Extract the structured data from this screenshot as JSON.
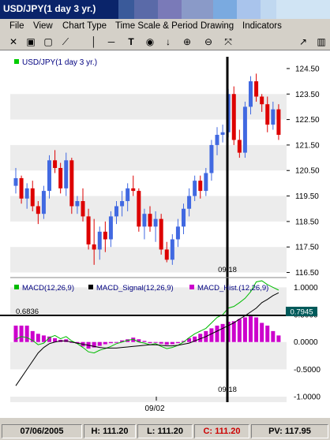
{
  "window": {
    "title": "USD/JPY(1 day  3 yr.)"
  },
  "menu": [
    "File",
    "View",
    "Chart Type",
    "Time Scale & Period",
    "Drawing",
    "Indicators"
  ],
  "toolbar_icons": [
    "crosshair-icon",
    "zoom-select-icon",
    "window-icon",
    "draw-line-icon",
    "vertical-line-icon",
    "horizontal-line-icon",
    "text-tool-icon",
    "target-icon",
    "arrow-down-icon",
    "zoom-in-icon",
    "zoom-out-icon",
    "fit-icon",
    "trend-icon",
    "chart-icon"
  ],
  "price_panel": {
    "legend": "USD/JPY(1 day  3 yr.)",
    "legend_color": "#00cc00",
    "y_ticks": [
      "124.50",
      "123.50",
      "122.50",
      "121.50",
      "120.50",
      "119.50",
      "118.50",
      "117.50",
      "116.50"
    ],
    "crosshair_label": "09/18",
    "up_color": "#4169e1",
    "down_color": "#dd0000"
  },
  "macd_panel": {
    "legend_items": [
      {
        "label": "MACD(12,26,9)",
        "color": "#00bb00"
      },
      {
        "label": "MACD_Signal(12,26,9)",
        "color": "#000000"
      },
      {
        "label": "MACD_Hist.(12,26,9)",
        "color": "#cc00cc"
      }
    ],
    "y_ticks": [
      "1.0000",
      "0.5000",
      "0.0000",
      "-0.5000",
      "-1.0000"
    ],
    "hline_value": "0.6836",
    "current_value": "0.7945",
    "crosshair_label": "09/18",
    "x_label": "09/02"
  },
  "chart_data": {
    "type": "candlestick",
    "candles": [
      [
        119.9,
        120.6,
        119.6,
        120.2
      ],
      [
        120.2,
        120.3,
        119.2,
        119.4
      ],
      [
        119.4,
        120.0,
        119.0,
        119.8
      ],
      [
        119.8,
        120.1,
        118.9,
        119.1
      ],
      [
        119.1,
        119.3,
        118.4,
        118.8
      ],
      [
        118.8,
        119.9,
        118.6,
        119.7
      ],
      [
        119.7,
        121.1,
        119.4,
        120.9
      ],
      [
        120.9,
        121.3,
        120.4,
        120.6
      ],
      [
        120.6,
        120.8,
        119.6,
        119.8
      ],
      [
        119.8,
        121.2,
        119.5,
        120.9
      ],
      [
        120.9,
        121.0,
        118.8,
        119.1
      ],
      [
        119.1,
        119.5,
        118.8,
        119.3
      ],
      [
        119.3,
        119.8,
        118.5,
        118.7
      ],
      [
        118.7,
        119.0,
        117.4,
        117.6
      ],
      [
        117.6,
        118.6,
        116.8,
        117.4
      ],
      [
        117.4,
        118.3,
        117.0,
        118.1
      ],
      [
        118.1,
        118.5,
        117.3,
        117.8
      ],
      [
        117.8,
        118.9,
        117.5,
        118.7
      ],
      [
        118.7,
        119.3,
        118.4,
        119.1
      ],
      [
        119.1,
        119.7,
        118.7,
        119.3
      ],
      [
        119.3,
        120.0,
        118.9,
        119.8
      ],
      [
        119.8,
        120.3,
        119.5,
        119.7
      ],
      [
        119.7,
        119.8,
        118.1,
        118.3
      ],
      [
        118.3,
        119.0,
        117.8,
        118.8
      ],
      [
        118.8,
        119.1,
        118.1,
        118.3
      ],
      [
        118.3,
        118.9,
        117.7,
        118.6
      ],
      [
        118.6,
        118.8,
        117.2,
        117.4
      ],
      [
        117.4,
        117.7,
        116.9,
        117.0
      ],
      [
        117.0,
        118.0,
        116.8,
        117.8
      ],
      [
        117.8,
        118.6,
        117.5,
        118.3
      ],
      [
        118.3,
        119.2,
        118.0,
        119.0
      ],
      [
        119.0,
        119.8,
        118.7,
        119.5
      ],
      [
        119.5,
        120.3,
        119.3,
        120.1
      ],
      [
        120.1,
        120.3,
        119.4,
        119.7
      ],
      [
        119.7,
        120.6,
        119.5,
        120.4
      ],
      [
        120.4,
        121.7,
        120.1,
        121.5
      ],
      [
        121.5,
        122.2,
        121.1,
        121.9
      ],
      [
        121.9,
        122.3,
        121.6,
        122.0
      ],
      [
        122.0,
        123.7,
        121.8,
        123.5
      ],
      [
        123.5,
        123.8,
        121.5,
        121.7
      ],
      [
        121.7,
        122.1,
        121.0,
        121.2
      ],
      [
        121.2,
        123.2,
        121.0,
        123.0
      ],
      [
        123.0,
        124.2,
        122.7,
        124.0
      ],
      [
        124.0,
        124.3,
        123.2,
        123.4
      ],
      [
        123.4,
        123.5,
        122.8,
        123.1
      ],
      [
        123.1,
        123.4,
        122.0,
        122.3
      ],
      [
        122.3,
        123.2,
        122.1,
        122.9
      ],
      [
        122.9,
        123.1,
        121.7,
        121.9
      ]
    ],
    "macd": [
      0.05,
      0.1,
      0.08,
      0.03,
      -0.05,
      -0.02,
      0.08,
      0.12,
      0.06,
      0.1,
      0.02,
      -0.03,
      -0.1,
      -0.18,
      -0.2,
      -0.15,
      -0.12,
      -0.08,
      -0.03,
      0.0,
      0.03,
      0.05,
      0.0,
      -0.02,
      -0.05,
      -0.03,
      -0.08,
      -0.12,
      -0.1,
      -0.06,
      0.0,
      0.08,
      0.15,
      0.2,
      0.25,
      0.35,
      0.45,
      0.5,
      0.62,
      0.65,
      0.72,
      0.8,
      0.92,
      1.1,
      1.12,
      1.05,
      1.0,
      0.95
    ],
    "signal": [
      -0.8,
      -0.65,
      -0.5,
      -0.35,
      -0.2,
      -0.1,
      -0.03,
      0.0,
      0.02,
      0.02,
      0.0,
      -0.02,
      -0.04,
      -0.06,
      -0.08,
      -0.1,
      -0.11,
      -0.11,
      -0.11,
      -0.1,
      -0.09,
      -0.08,
      -0.07,
      -0.06,
      -0.05,
      -0.05,
      -0.06,
      -0.07,
      -0.07,
      -0.06,
      -0.04,
      -0.02,
      0.02,
      0.06,
      0.1,
      0.15,
      0.2,
      0.25,
      0.3,
      0.35,
      0.42,
      0.48,
      0.55,
      0.62,
      0.72,
      0.78,
      0.85,
      0.9
    ],
    "hist": [
      0.3,
      0.3,
      0.3,
      0.2,
      0.15,
      0.12,
      0.1,
      0.07,
      0.04,
      0.05,
      0.0,
      -0.03,
      -0.08,
      -0.12,
      -0.1,
      -0.07,
      -0.04,
      -0.02,
      0.0,
      0.03,
      0.05,
      0.08,
      0.05,
      0.02,
      -0.02,
      0.0,
      -0.03,
      -0.05,
      -0.04,
      -0.02,
      0.02,
      0.07,
      0.1,
      0.15,
      0.2,
      0.25,
      0.3,
      0.33,
      0.37,
      0.38,
      0.42,
      0.45,
      0.47,
      0.45,
      0.35,
      0.3,
      0.2,
      0.12
    ]
  },
  "status": {
    "date": "07/06/2005",
    "high": "H: 111.20",
    "low": "L: 111.20",
    "close": "C: 111.20",
    "pv": "PV: 117.95"
  }
}
